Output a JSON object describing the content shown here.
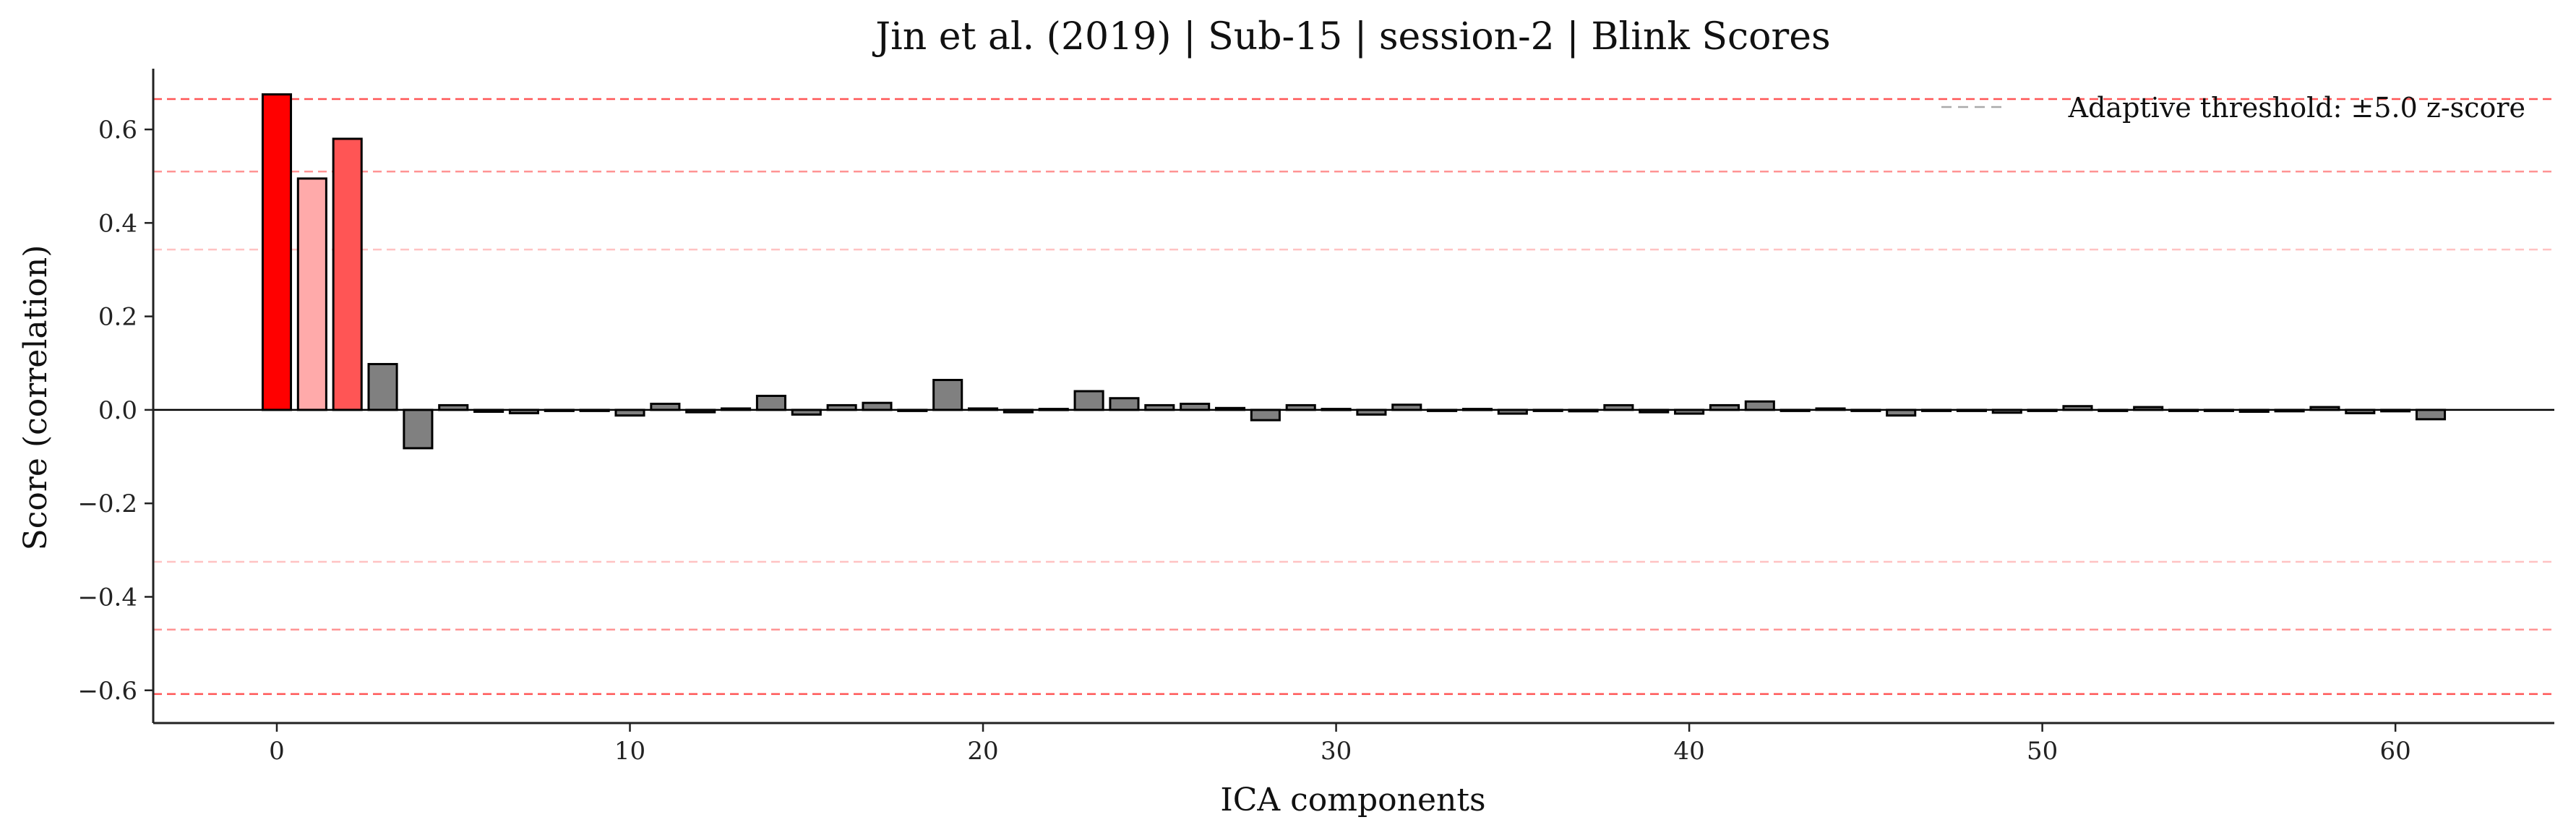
{
  "chart_data": {
    "type": "bar",
    "title": "Jin et al. (2019) | Sub-15 | session-2 | Blink Scores",
    "xlabel": "ICA components",
    "ylabel": "Score (correlation)",
    "xlim": [
      -3.5,
      64.5
    ],
    "ylim": [
      -0.67,
      0.73
    ],
    "xticks": [
      0,
      10,
      20,
      30,
      40,
      50,
      60
    ],
    "yticks": [
      -0.6,
      -0.4,
      -0.2,
      0.0,
      0.2,
      0.4,
      0.6
    ],
    "ytick_labels": [
      "−0.6",
      "−0.4",
      "−0.2",
      "0.0",
      "0.2",
      "0.4",
      "0.6"
    ],
    "x": [
      0,
      1,
      2,
      3,
      4,
      5,
      6,
      7,
      8,
      9,
      10,
      11,
      12,
      13,
      14,
      15,
      16,
      17,
      18,
      19,
      20,
      21,
      22,
      23,
      24,
      25,
      26,
      27,
      28,
      29,
      30,
      31,
      32,
      33,
      34,
      35,
      36,
      37,
      38,
      39,
      40,
      41,
      42,
      43,
      44,
      45,
      46,
      47,
      48,
      49,
      50,
      51,
      52,
      53,
      54,
      55,
      56,
      57,
      58,
      59,
      60,
      61
    ],
    "values": [
      0.675,
      0.495,
      0.58,
      0.098,
      -0.082,
      0.01,
      -0.004,
      -0.007,
      -0.002,
      -0.001,
      -0.012,
      0.013,
      -0.005,
      0.003,
      0.03,
      -0.01,
      0.01,
      0.015,
      -0.001,
      0.064,
      0.003,
      -0.005,
      0.002,
      0.04,
      0.025,
      0.01,
      0.013,
      0.004,
      -0.022,
      0.01,
      0.002,
      -0.01,
      0.011,
      -0.001,
      0.002,
      -0.008,
      -0.001,
      -0.003,
      0.01,
      -0.005,
      -0.008,
      0.01,
      0.018,
      -0.002,
      0.003,
      -0.002,
      -0.012,
      -0.001,
      -0.001,
      -0.006,
      -0.001,
      0.008,
      -0.001,
      0.006,
      -0.001,
      -0.001,
      -0.004,
      -0.003,
      0.006,
      -0.007,
      -0.003,
      -0.02
    ],
    "bar_colors": [
      "#ff0000",
      "#ffaaaa",
      "#ff5555",
      "#808080",
      "#808080",
      "#808080",
      "#808080",
      "#808080",
      "#808080",
      "#808080",
      "#808080",
      "#808080",
      "#808080",
      "#808080",
      "#808080",
      "#808080",
      "#808080",
      "#808080",
      "#808080",
      "#808080",
      "#808080",
      "#808080",
      "#808080",
      "#808080",
      "#808080",
      "#808080",
      "#808080",
      "#808080",
      "#808080",
      "#808080",
      "#808080",
      "#808080",
      "#808080",
      "#808080",
      "#808080",
      "#808080",
      "#808080",
      "#808080",
      "#808080",
      "#808080",
      "#808080",
      "#808080",
      "#808080",
      "#808080",
      "#808080",
      "#808080",
      "#808080",
      "#808080",
      "#808080",
      "#808080",
      "#808080",
      "#808080",
      "#808080",
      "#808080",
      "#808080",
      "#808080",
      "#808080",
      "#808080",
      "#808080",
      "#808080",
      "#808080",
      "#808080"
    ],
    "threshold_lines": [
      {
        "y": 0.665,
        "color": "#ff4444",
        "opacity": 0.9
      },
      {
        "y": 0.51,
        "color": "#ff6666",
        "opacity": 0.7
      },
      {
        "y": 0.343,
        "color": "#ff8888",
        "opacity": 0.5
      },
      {
        "y": -0.325,
        "color": "#ff8888",
        "opacity": 0.5
      },
      {
        "y": -0.47,
        "color": "#ff6666",
        "opacity": 0.7
      },
      {
        "y": -0.608,
        "color": "#ff4444",
        "opacity": 0.9
      }
    ],
    "legend": {
      "label": "Adaptive threshold: ±5.0 z-score",
      "placement": "top-right",
      "line_color": "#aaaaaa"
    },
    "grid": false
  }
}
